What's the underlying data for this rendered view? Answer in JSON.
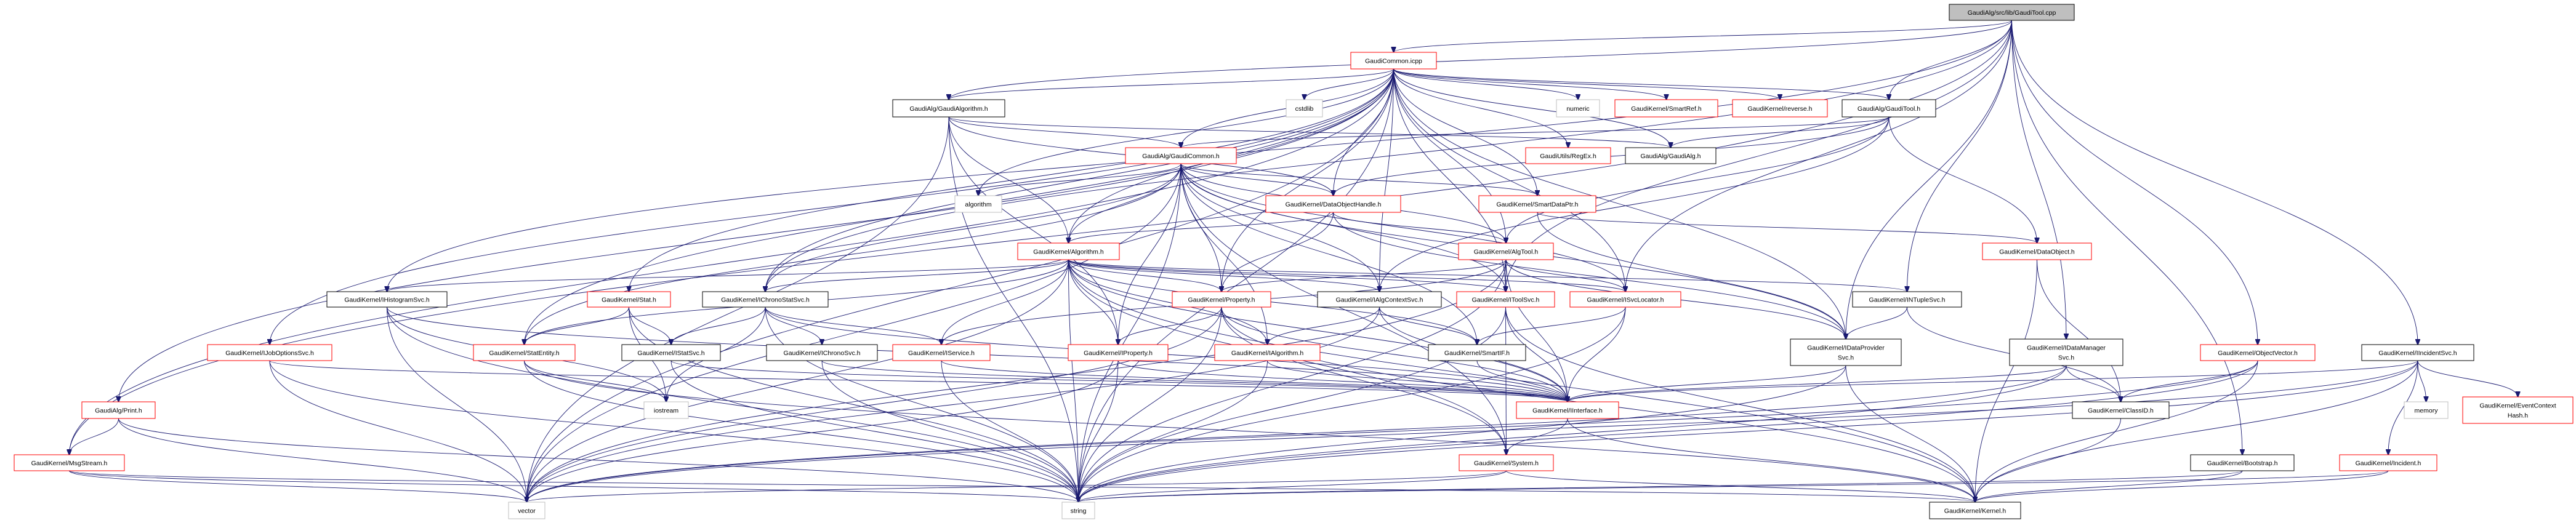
{
  "colors": {
    "edge": "#191970",
    "documented_border": "#000000",
    "undocumented_border": "#ff0000",
    "system_border": "#bfbfbf",
    "root_fill": "#bfbfbf"
  },
  "nodes": [
    {
      "id": "root",
      "lines": [
        "GaudiAlg/src/lib/GaudiTool.cpp"
      ],
      "style": "root"
    },
    {
      "id": "gcicpp",
      "lines": [
        "GaudiCommon.icpp"
      ],
      "style": "red"
    },
    {
      "id": "galgh",
      "lines": [
        "GaudiAlg/GaudiAlgorithm.h"
      ],
      "style": "black"
    },
    {
      "id": "cstdlib",
      "lines": [
        "cstdlib"
      ],
      "style": "gray"
    },
    {
      "id": "numeric",
      "lines": [
        "numeric"
      ],
      "style": "gray"
    },
    {
      "id": "smartref",
      "lines": [
        "GaudiKernel/SmartRef.h"
      ],
      "style": "red"
    },
    {
      "id": "reverse",
      "lines": [
        "GaudiKernel/reverse.h"
      ],
      "style": "red"
    },
    {
      "id": "gtoolh",
      "lines": [
        "GaudiAlg/GaudiTool.h"
      ],
      "style": "black"
    },
    {
      "id": "gcommonh",
      "lines": [
        "GaudiAlg/GaudiCommon.h"
      ],
      "style": "red"
    },
    {
      "id": "regex",
      "lines": [
        "GaudiUtils/RegEx.h"
      ],
      "style": "red"
    },
    {
      "id": "gaudialg",
      "lines": [
        "GaudiAlg/GaudiAlg.h"
      ],
      "style": "black"
    },
    {
      "id": "algorithm",
      "lines": [
        "algorithm"
      ],
      "style": "gray"
    },
    {
      "id": "dohandle",
      "lines": [
        "GaudiKernel/DataObjectHandle.h"
      ],
      "style": "red"
    },
    {
      "id": "smartdp",
      "lines": [
        "GaudiKernel/SmartDataPtr.h"
      ],
      "style": "red"
    },
    {
      "id": "algoh",
      "lines": [
        "GaudiKernel/Algorithm.h"
      ],
      "style": "red"
    },
    {
      "id": "algtool",
      "lines": [
        "GaudiKernel/AlgTool.h"
      ],
      "style": "red"
    },
    {
      "id": "dataobj",
      "lines": [
        "GaudiKernel/DataObject.h"
      ],
      "style": "red"
    },
    {
      "id": "ihisto",
      "lines": [
        "GaudiKernel/IHistogramSvc.h"
      ],
      "style": "black"
    },
    {
      "id": "stat",
      "lines": [
        "GaudiKernel/Stat.h"
      ],
      "style": "red"
    },
    {
      "id": "ichronostat",
      "lines": [
        "GaudiKernel/IChronoStatSvc.h"
      ],
      "style": "black"
    },
    {
      "id": "property",
      "lines": [
        "GaudiKernel/Property.h"
      ],
      "style": "red"
    },
    {
      "id": "ialgctx",
      "lines": [
        "GaudiKernel/IAlgContextSvc.h"
      ],
      "style": "black"
    },
    {
      "id": "itoolsvc",
      "lines": [
        "GaudiKernel/IToolSvc.h"
      ],
      "style": "red"
    },
    {
      "id": "isvcloc",
      "lines": [
        "GaudiKernel/ISvcLocator.h"
      ],
      "style": "red"
    },
    {
      "id": "intuple",
      "lines": [
        "GaudiKernel/INTupleSvc.h"
      ],
      "style": "black"
    },
    {
      "id": "ijobopt",
      "lines": [
        "GaudiKernel/IJobOptionsSvc.h"
      ],
      "style": "red"
    },
    {
      "id": "statentity",
      "lines": [
        "GaudiKernel/StatEntity.h"
      ],
      "style": "red"
    },
    {
      "id": "istatsvc",
      "lines": [
        "GaudiKernel/IStatSvc.h"
      ],
      "style": "black"
    },
    {
      "id": "ichrono",
      "lines": [
        "GaudiKernel/IChronoSvc.h"
      ],
      "style": "black"
    },
    {
      "id": "iservice",
      "lines": [
        "GaudiKernel/IService.h"
      ],
      "style": "red"
    },
    {
      "id": "iproperty",
      "lines": [
        "GaudiKernel/IProperty.h"
      ],
      "style": "red"
    },
    {
      "id": "ialgorithm",
      "lines": [
        "GaudiKernel/IAlgorithm.h"
      ],
      "style": "red"
    },
    {
      "id": "smartif",
      "lines": [
        "GaudiKernel/SmartIF.h"
      ],
      "style": "black"
    },
    {
      "id": "idataprov",
      "lines": [
        "GaudiKernel/IDataProvider",
        "Svc.h"
      ],
      "style": "black"
    },
    {
      "id": "idatamgr",
      "lines": [
        "GaudiKernel/IDataManager",
        "Svc.h"
      ],
      "style": "black"
    },
    {
      "id": "objvector",
      "lines": [
        "GaudiKernel/ObjectVector.h"
      ],
      "style": "red"
    },
    {
      "id": "iincident",
      "lines": [
        "GaudiKernel/IIncidentSvc.h"
      ],
      "style": "black"
    },
    {
      "id": "print",
      "lines": [
        "GaudiAlg/Print.h"
      ],
      "style": "red"
    },
    {
      "id": "iostream",
      "lines": [
        "iostream"
      ],
      "style": "gray"
    },
    {
      "id": "iinterface",
      "lines": [
        "GaudiKernel/IInterface.h"
      ],
      "style": "red"
    },
    {
      "id": "classid",
      "lines": [
        "GaudiKernel/ClassID.h"
      ],
      "style": "black"
    },
    {
      "id": "memory",
      "lines": [
        "memory"
      ],
      "style": "gray"
    },
    {
      "id": "evctxhash",
      "lines": [
        "GaudiKernel/EventContext",
        "Hash.h"
      ],
      "style": "red"
    },
    {
      "id": "msgstream",
      "lines": [
        "GaudiKernel/MsgStream.h"
      ],
      "style": "red"
    },
    {
      "id": "system",
      "lines": [
        "GaudiKernel/System.h"
      ],
      "style": "red"
    },
    {
      "id": "bootstrap",
      "lines": [
        "GaudiKernel/Bootstrap.h"
      ],
      "style": "black"
    },
    {
      "id": "incident",
      "lines": [
        "GaudiKernel/Incident.h"
      ],
      "style": "red"
    },
    {
      "id": "vector",
      "lines": [
        "vector"
      ],
      "style": "gray"
    },
    {
      "id": "string",
      "lines": [
        "string"
      ],
      "style": "gray"
    },
    {
      "id": "kernel",
      "lines": [
        "GaudiKernel/Kernel.h"
      ],
      "style": "black"
    }
  ],
  "edges": [
    [
      "root",
      "gcicpp"
    ],
    [
      "root",
      "gtoolh"
    ],
    [
      "root",
      "galgh"
    ],
    [
      "root",
      "ihisto"
    ],
    [
      "root",
      "msgstream"
    ],
    [
      "root",
      "idataprov"
    ],
    [
      "root",
      "intuple"
    ],
    [
      "root",
      "idatamgr"
    ],
    [
      "root",
      "objvector"
    ],
    [
      "root",
      "iincident"
    ],
    [
      "root",
      "bootstrap"
    ],
    [
      "root",
      "isvcloc"
    ],
    [
      "root",
      "itoolsvc"
    ],
    [
      "root",
      "ichronostat"
    ],
    [
      "gcicpp",
      "galgh"
    ],
    [
      "gcicpp",
      "cstdlib"
    ],
    [
      "gcicpp",
      "numeric"
    ],
    [
      "gcicpp",
      "smartref"
    ],
    [
      "gcicpp",
      "reverse"
    ],
    [
      "gcicpp",
      "gtoolh"
    ],
    [
      "gcicpp",
      "gcommonh"
    ],
    [
      "gcicpp",
      "regex"
    ],
    [
      "gcicpp",
      "algorithm"
    ],
    [
      "gcicpp",
      "dohandle"
    ],
    [
      "gcicpp",
      "smartdp"
    ],
    [
      "gcicpp",
      "algtool"
    ],
    [
      "gcicpp",
      "isvcloc"
    ],
    [
      "gcicpp",
      "itoolsvc"
    ],
    [
      "gcicpp",
      "idataprov"
    ],
    [
      "gcicpp",
      "stat"
    ],
    [
      "gcicpp",
      "statentity"
    ],
    [
      "gcicpp",
      "ichronostat"
    ],
    [
      "gcicpp",
      "ijobopt"
    ],
    [
      "gcicpp",
      "print"
    ],
    [
      "gcicpp",
      "msgstream"
    ],
    [
      "gcicpp",
      "string"
    ],
    [
      "gcicpp",
      "vector"
    ],
    [
      "gcicpp",
      "algoh"
    ],
    [
      "gcicpp",
      "property"
    ],
    [
      "gcicpp",
      "ialgctx"
    ],
    [
      "gcicpp",
      "gaudialg"
    ],
    [
      "galgh",
      "gcommonh"
    ],
    [
      "galgh",
      "gaudialg"
    ],
    [
      "galgh",
      "algoh"
    ],
    [
      "galgh",
      "dohandle"
    ],
    [
      "galgh",
      "string"
    ],
    [
      "galgh",
      "vector"
    ],
    [
      "galgh",
      "iproperty"
    ],
    [
      "gtoolh",
      "gcommonh"
    ],
    [
      "gtoolh",
      "gaudialg"
    ],
    [
      "gtoolh",
      "dataobj"
    ],
    [
      "gtoolh",
      "algtool"
    ],
    [
      "gtoolh",
      "ialgctx"
    ],
    [
      "gtoolh",
      "dohandle"
    ],
    [
      "gcommonh",
      "algorithm"
    ],
    [
      "gcommonh",
      "dohandle"
    ],
    [
      "gcommonh",
      "smartdp"
    ],
    [
      "gcommonh",
      "algoh"
    ],
    [
      "gcommonh",
      "algtool"
    ],
    [
      "gcommonh",
      "property"
    ],
    [
      "gcommonh",
      "ialgctx"
    ],
    [
      "gcommonh",
      "itoolsvc"
    ],
    [
      "gcommonh",
      "isvcloc"
    ],
    [
      "gcommonh",
      "ichronostat"
    ],
    [
      "gcommonh",
      "statentity"
    ],
    [
      "gcommonh",
      "idataprov"
    ],
    [
      "gcommonh",
      "string"
    ],
    [
      "gcommonh",
      "vector"
    ],
    [
      "gcommonh",
      "iproperty"
    ],
    [
      "gcommonh",
      "ialgorithm"
    ],
    [
      "gcommonh",
      "system"
    ],
    [
      "gcommonh",
      "smartif"
    ],
    [
      "dohandle",
      "algoh"
    ],
    [
      "dohandle",
      "algtool"
    ],
    [
      "dohandle",
      "property"
    ],
    [
      "dohandle",
      "idataprov"
    ],
    [
      "smartdp",
      "dataobj"
    ],
    [
      "smartdp",
      "idataprov"
    ],
    [
      "algoh",
      "ihisto"
    ],
    [
      "algoh",
      "ichronostat"
    ],
    [
      "algoh",
      "statentity"
    ],
    [
      "algoh",
      "iservice"
    ],
    [
      "algoh",
      "property"
    ],
    [
      "algoh",
      "iproperty"
    ],
    [
      "algoh",
      "ialgorithm"
    ],
    [
      "algoh",
      "ialgctx"
    ],
    [
      "algoh",
      "itoolsvc"
    ],
    [
      "algoh",
      "isvcloc"
    ],
    [
      "algoh",
      "intuple"
    ],
    [
      "algoh",
      "smartif"
    ],
    [
      "algoh",
      "system"
    ],
    [
      "algoh",
      "string"
    ],
    [
      "algoh",
      "vector"
    ],
    [
      "algoh",
      "iinterface"
    ],
    [
      "algoh",
      "kernel"
    ],
    [
      "algtool",
      "property"
    ],
    [
      "algtool",
      "itoolsvc"
    ],
    [
      "algtool",
      "isvcloc"
    ],
    [
      "algtool",
      "iservice"
    ],
    [
      "algtool",
      "idataprov"
    ],
    [
      "algtool",
      "iinterface"
    ],
    [
      "algtool",
      "string"
    ],
    [
      "algtool",
      "vector"
    ],
    [
      "dataobj",
      "classid"
    ],
    [
      "dataobj",
      "kernel"
    ],
    [
      "ihisto",
      "iinterface"
    ],
    [
      "ihisto",
      "iostream"
    ],
    [
      "ihisto",
      "string"
    ],
    [
      "ihisto",
      "vector"
    ],
    [
      "stat",
      "statentity"
    ],
    [
      "stat",
      "istatsvc"
    ],
    [
      "stat",
      "iostream"
    ],
    [
      "stat",
      "string"
    ],
    [
      "ichronostat",
      "istatsvc"
    ],
    [
      "ichronostat",
      "ichrono"
    ],
    [
      "ichronostat",
      "iinterface"
    ],
    [
      "ichronostat",
      "iostream"
    ],
    [
      "ichronostat",
      "string"
    ],
    [
      "ichronostat",
      "iservice"
    ],
    [
      "property",
      "iproperty"
    ],
    [
      "property",
      "iinterface"
    ],
    [
      "property",
      "string"
    ],
    [
      "property",
      "vector"
    ],
    [
      "property",
      "system"
    ],
    [
      "property",
      "kernel"
    ],
    [
      "ialgctx",
      "ialgorithm"
    ],
    [
      "ialgctx",
      "smartif"
    ],
    [
      "ialgctx",
      "iinterface"
    ],
    [
      "ialgctx",
      "vector"
    ],
    [
      "itoolsvc",
      "iinterface"
    ],
    [
      "itoolsvc",
      "system"
    ],
    [
      "itoolsvc",
      "string"
    ],
    [
      "itoolsvc",
      "kernel"
    ],
    [
      "isvcloc",
      "iinterface"
    ],
    [
      "isvcloc",
      "smartif"
    ],
    [
      "isvcloc",
      "string"
    ],
    [
      "intuple",
      "idataprov"
    ],
    [
      "intuple",
      "classid"
    ],
    [
      "ijobopt",
      "iinterface"
    ],
    [
      "ijobopt",
      "string"
    ],
    [
      "ijobopt",
      "vector"
    ],
    [
      "statentity",
      "iostream"
    ],
    [
      "statentity",
      "string"
    ],
    [
      "statentity",
      "kernel"
    ],
    [
      "istatsvc",
      "iinterface"
    ],
    [
      "istatsvc",
      "string"
    ],
    [
      "ichrono",
      "iinterface"
    ],
    [
      "ichrono",
      "string"
    ],
    [
      "print",
      "msgstream"
    ],
    [
      "print",
      "string"
    ],
    [
      "print",
      "vector"
    ],
    [
      "msgstream",
      "string"
    ],
    [
      "msgstream",
      "vector"
    ],
    [
      "msgstream",
      "kernel"
    ],
    [
      "iservice",
      "iinterface"
    ],
    [
      "iservice",
      "string"
    ],
    [
      "iproperty",
      "iinterface"
    ],
    [
      "iproperty",
      "string"
    ],
    [
      "iproperty",
      "vector"
    ],
    [
      "ialgorithm",
      "iinterface"
    ],
    [
      "ialgorithm",
      "string"
    ],
    [
      "smartif",
      "iinterface"
    ],
    [
      "iinterface",
      "system"
    ],
    [
      "iinterface",
      "kernel"
    ],
    [
      "system",
      "string"
    ],
    [
      "system",
      "vector"
    ],
    [
      "system",
      "kernel"
    ],
    [
      "idataprov",
      "iinterface"
    ],
    [
      "idataprov",
      "string"
    ],
    [
      "idataprov",
      "kernel"
    ],
    [
      "idatamgr",
      "iinterface"
    ],
    [
      "idatamgr",
      "classid"
    ],
    [
      "idatamgr",
      "string"
    ],
    [
      "idatamgr",
      "vector"
    ],
    [
      "objvector",
      "classid"
    ],
    [
      "objvector",
      "vector"
    ],
    [
      "objvector",
      "kernel"
    ],
    [
      "objvector",
      "string"
    ],
    [
      "iincident",
      "iinterface"
    ],
    [
      "iincident",
      "memory"
    ],
    [
      "iincident",
      "evctxhash"
    ],
    [
      "iincident",
      "incident"
    ],
    [
      "iincident",
      "string"
    ],
    [
      "iincident",
      "vector"
    ],
    [
      "iincident",
      "kernel"
    ],
    [
      "classid",
      "kernel"
    ],
    [
      "bootstrap",
      "kernel"
    ],
    [
      "bootstrap",
      "string"
    ],
    [
      "incident",
      "kernel"
    ],
    [
      "incident",
      "string"
    ]
  ]
}
